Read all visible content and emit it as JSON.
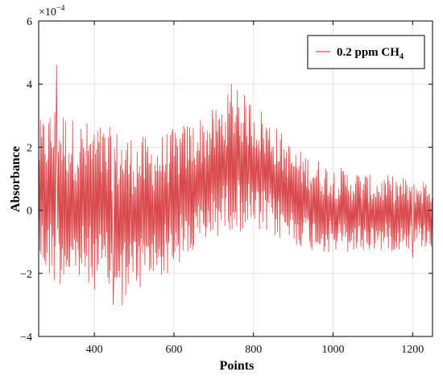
{
  "chart_data": {
    "type": "line",
    "xlabel": "Points",
    "ylabel": "Absorbance",
    "y_scale_label": "×10",
    "y_scale_exponent": "−4",
    "xlim": [
      260,
      1250
    ],
    "ylim": [
      -4,
      6
    ],
    "x_ticks": [
      400,
      600,
      800,
      1000,
      1200
    ],
    "y_ticks": [
      -4,
      -2,
      0,
      2,
      4,
      6
    ],
    "grid": true,
    "legend_position": "top-right",
    "series": [
      {
        "name": "0.2  ppm CH4",
        "name_main": "0.2  ppm CH",
        "name_sub": "4",
        "color": "#d9494b",
        "envelope": {
          "x": [
            260,
            300,
            350,
            400,
            450,
            500,
            550,
            600,
            650,
            700,
            750,
            800,
            850,
            900,
            950,
            1000,
            1050,
            1100,
            1150,
            1200,
            1250
          ],
          "upper": [
            2.8,
            3.4,
            2.9,
            2.8,
            2.6,
            2.4,
            2.3,
            2.6,
            2.9,
            3.2,
            3.9,
            3.5,
            2.8,
            2.0,
            1.7,
            1.4,
            1.3,
            1.1,
            1.1,
            1.0,
            1.0
          ],
          "lower": [
            -1.9,
            -2.4,
            -2.4,
            -2.5,
            -2.8,
            -2.7,
            -2.3,
            -1.9,
            -1.5,
            -0.9,
            -0.6,
            -0.8,
            -0.9,
            -1.1,
            -1.3,
            -1.4,
            -1.4,
            -1.3,
            -1.3,
            -1.2,
            -1.2
          ]
        },
        "peaks": [
          {
            "x": 305,
            "y": 4.6
          },
          {
            "x": 745,
            "y": 4.0
          },
          {
            "x": 760,
            "y": 3.8
          },
          {
            "x": 448,
            "y": -3.0
          },
          {
            "x": 470,
            "y": -3.0
          },
          {
            "x": 1200,
            "y": -1.5
          }
        ]
      }
    ]
  }
}
